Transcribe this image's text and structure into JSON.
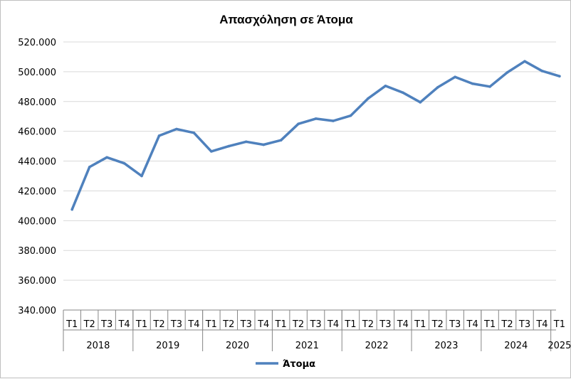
{
  "chart_data": {
    "type": "line",
    "title": "Απασχόληση σε Άτομα",
    "ylim": [
      340000,
      520000
    ],
    "y_ticks": [
      "340.000",
      "360.000",
      "380.000",
      "400.000",
      "420.000",
      "440.000",
      "460.000",
      "480.000",
      "500.000",
      "520.000"
    ],
    "grid": true,
    "legend_position": "bottom",
    "series_color": "#4f81bd",
    "categories": [
      "2018 T1",
      "2018 T2",
      "2018 T3",
      "2018 T4",
      "2019 T1",
      "2019 T2",
      "2019 T3",
      "2019 T4",
      "2020 T1",
      "2020 T2",
      "2020 T3",
      "2020 T4",
      "2021 T1",
      "2021 T2",
      "2021 T3",
      "2021 T4",
      "2022 T1",
      "2022 T2",
      "2022 T3",
      "2022 T4",
      "2023 T1",
      "2023 T2",
      "2023 T3",
      "2023 T4",
      "2024 T1",
      "2024 T2",
      "2024 T3",
      "2024 T4",
      "2025 T1"
    ],
    "quarter_labels": [
      "T1",
      "T2",
      "T3",
      "T4",
      "T1",
      "T2",
      "T3",
      "T4",
      "T1",
      "T2",
      "T3",
      "T4",
      "T1",
      "T2",
      "T3",
      "T4",
      "T1",
      "T2",
      "T3",
      "T4",
      "T1",
      "T2",
      "T3",
      "T4",
      "T1",
      "T2",
      "T3",
      "T4",
      "T1"
    ],
    "years": [
      {
        "label": "2018",
        "quarters": 4
      },
      {
        "label": "2019",
        "quarters": 4
      },
      {
        "label": "2020",
        "quarters": 4
      },
      {
        "label": "2021",
        "quarters": 4
      },
      {
        "label": "2022",
        "quarters": 4
      },
      {
        "label": "2023",
        "quarters": 4
      },
      {
        "label": "2024",
        "quarters": 4
      },
      {
        "label": "2025",
        "quarters": 1
      }
    ],
    "series": [
      {
        "name": "Άτομα",
        "values": [
          407500,
          436000,
          442500,
          438500,
          430000,
          457000,
          461500,
          459000,
          446500,
          450000,
          453000,
          451000,
          454000,
          465000,
          468500,
          467000,
          470500,
          482000,
          490500,
          486000,
          479500,
          489500,
          496500,
          492000,
          490000,
          499500,
          507000,
          500500,
          497000
        ]
      }
    ]
  }
}
